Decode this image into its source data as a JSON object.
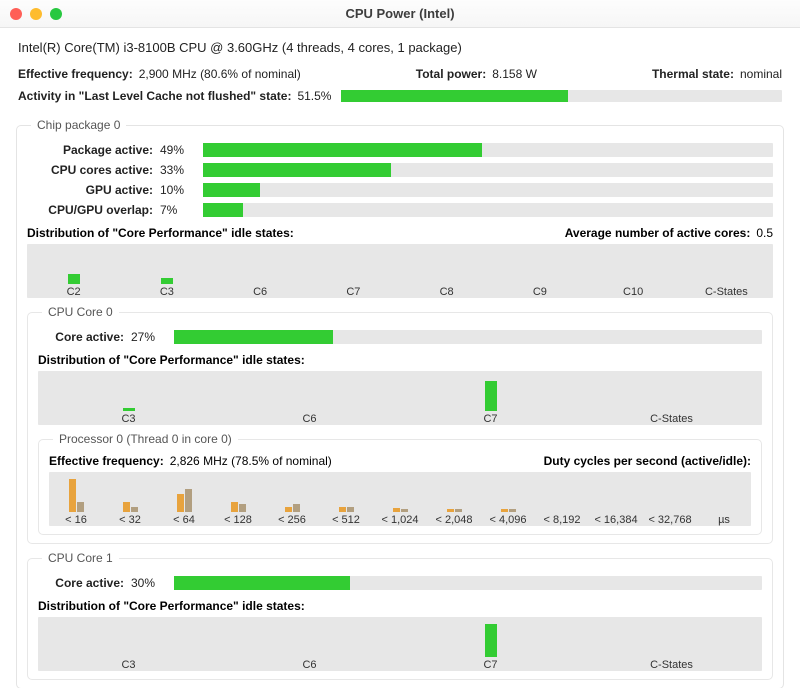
{
  "window": {
    "title": "CPU Power (Intel)"
  },
  "cpu_name": "Intel(R) Core(TM) i3-8100B CPU @ 3.60GHz (4 threads, 4 cores, 1 package)",
  "top_metrics": {
    "eff_freq_label": "Effective frequency:",
    "eff_freq_value": "2,900 MHz (80.6% of nominal)",
    "total_power_label": "Total power:",
    "total_power_value": "8.158 W",
    "thermal_label": "Thermal state:",
    "thermal_value": "nominal",
    "llc_label": "Activity in \"Last Level Cache not flushed\" state:",
    "llc_value": "51.5%",
    "llc_pct": 51.5
  },
  "colors": {
    "bar_bg": "#e7e7e7",
    "bar_green": "#33cc33",
    "hist_active": "#e8a33d",
    "hist_idle": "#b29f80"
  },
  "chip_package": {
    "title": "Chip package 0",
    "rows": [
      {
        "label": "Package active:",
        "value": "49%",
        "pct": 49
      },
      {
        "label": "CPU cores active:",
        "value": "33%",
        "pct": 33
      },
      {
        "label": "GPU active:",
        "value": "10%",
        "pct": 10
      },
      {
        "label": "CPU/GPU overlap:",
        "value": "7%",
        "pct": 7
      }
    ],
    "dist_label": "Distribution of \"Core Performance\" idle states:",
    "avg_cores_label": "Average number of active cores:",
    "avg_cores_value": "0.5",
    "cstates": {
      "labels": [
        "C2",
        "C3",
        "C6",
        "C7",
        "C8",
        "C9",
        "C10",
        "C-States"
      ],
      "values": [
        8,
        5,
        0,
        0,
        0,
        0,
        0,
        0
      ]
    }
  },
  "core0": {
    "title": "CPU Core 0",
    "active_label": "Core active:",
    "active_value": "27%",
    "active_pct": 27,
    "dist_label": "Distribution of \"Core Performance\" idle states:",
    "cstates": {
      "labels": [
        "C3",
        "C6",
        "C7",
        "C-States"
      ],
      "values": [
        2,
        0,
        24,
        0
      ]
    },
    "proc": {
      "title": "Processor 0 (Thread 0 in core 0)",
      "eff_label": "Effective frequency:",
      "eff_value": "2,826 MHz (78.5% of nominal)",
      "duty_label": "Duty cycles per second (active/idle):",
      "hist": {
        "labels": [
          "< 16",
          "< 32",
          "< 64",
          "< 128",
          "< 256",
          "< 512",
          "< 1,024",
          "< 2,048",
          "< 4,096",
          "< 8,192",
          "< 16,384",
          "< 32,768",
          "µs"
        ],
        "active": [
          26,
          8,
          14,
          8,
          4,
          4,
          3,
          2,
          2,
          0,
          0,
          0,
          0
        ],
        "idle": [
          8,
          4,
          18,
          6,
          6,
          4,
          2,
          2,
          2,
          0,
          0,
          0,
          0
        ]
      }
    }
  },
  "core1": {
    "title": "CPU Core 1",
    "active_label": "Core active:",
    "active_value": "30%",
    "active_pct": 30,
    "dist_label": "Distribution of \"Core Performance\" idle states:",
    "cstates": {
      "labels": [
        "C3",
        "C6",
        "C7",
        "C-States"
      ],
      "values": [
        0,
        0,
        26,
        0
      ]
    }
  }
}
